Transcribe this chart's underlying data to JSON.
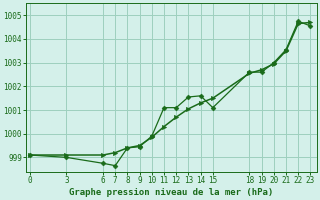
{
  "title": "Graphe pression niveau de la mer (hPa)",
  "bg_color": "#d4f0ea",
  "grid_color": "#9ecfbe",
  "line_color": "#1a6b1a",
  "x_ticks": [
    0,
    3,
    6,
    7,
    8,
    9,
    10,
    11,
    12,
    13,
    14,
    15,
    18,
    19,
    20,
    21,
    22,
    23
  ],
  "y_ticks": [
    999,
    1000,
    1001,
    1002,
    1003,
    1004,
    1005
  ],
  "ylim": [
    998.4,
    1005.5
  ],
  "xlim": [
    -0.3,
    23.5
  ],
  "smooth_x": [
    0,
    3,
    6,
    7,
    8,
    9,
    10,
    11,
    12,
    13,
    14,
    15,
    18,
    19,
    20,
    21,
    22,
    23
  ],
  "smooth_y": [
    999.1,
    999.1,
    999.1,
    999.2,
    999.4,
    999.5,
    999.85,
    1000.3,
    1000.7,
    1001.05,
    1001.3,
    1001.5,
    1002.55,
    1002.7,
    1002.95,
    1003.5,
    1004.65,
    1004.7
  ],
  "jagged_x": [
    0,
    3,
    6,
    7,
    8,
    9,
    10,
    11,
    12,
    13,
    14,
    15,
    18,
    19,
    20,
    21,
    22,
    23
  ],
  "jagged_y": [
    999.1,
    999.0,
    998.75,
    998.65,
    999.4,
    999.45,
    999.9,
    1001.1,
    1001.1,
    1001.55,
    1001.6,
    1001.1,
    1002.6,
    1002.6,
    1003.0,
    1003.55,
    1004.75,
    1004.55
  ],
  "tick_fontsize": 5.5,
  "xlabel_fontsize": 6.5
}
